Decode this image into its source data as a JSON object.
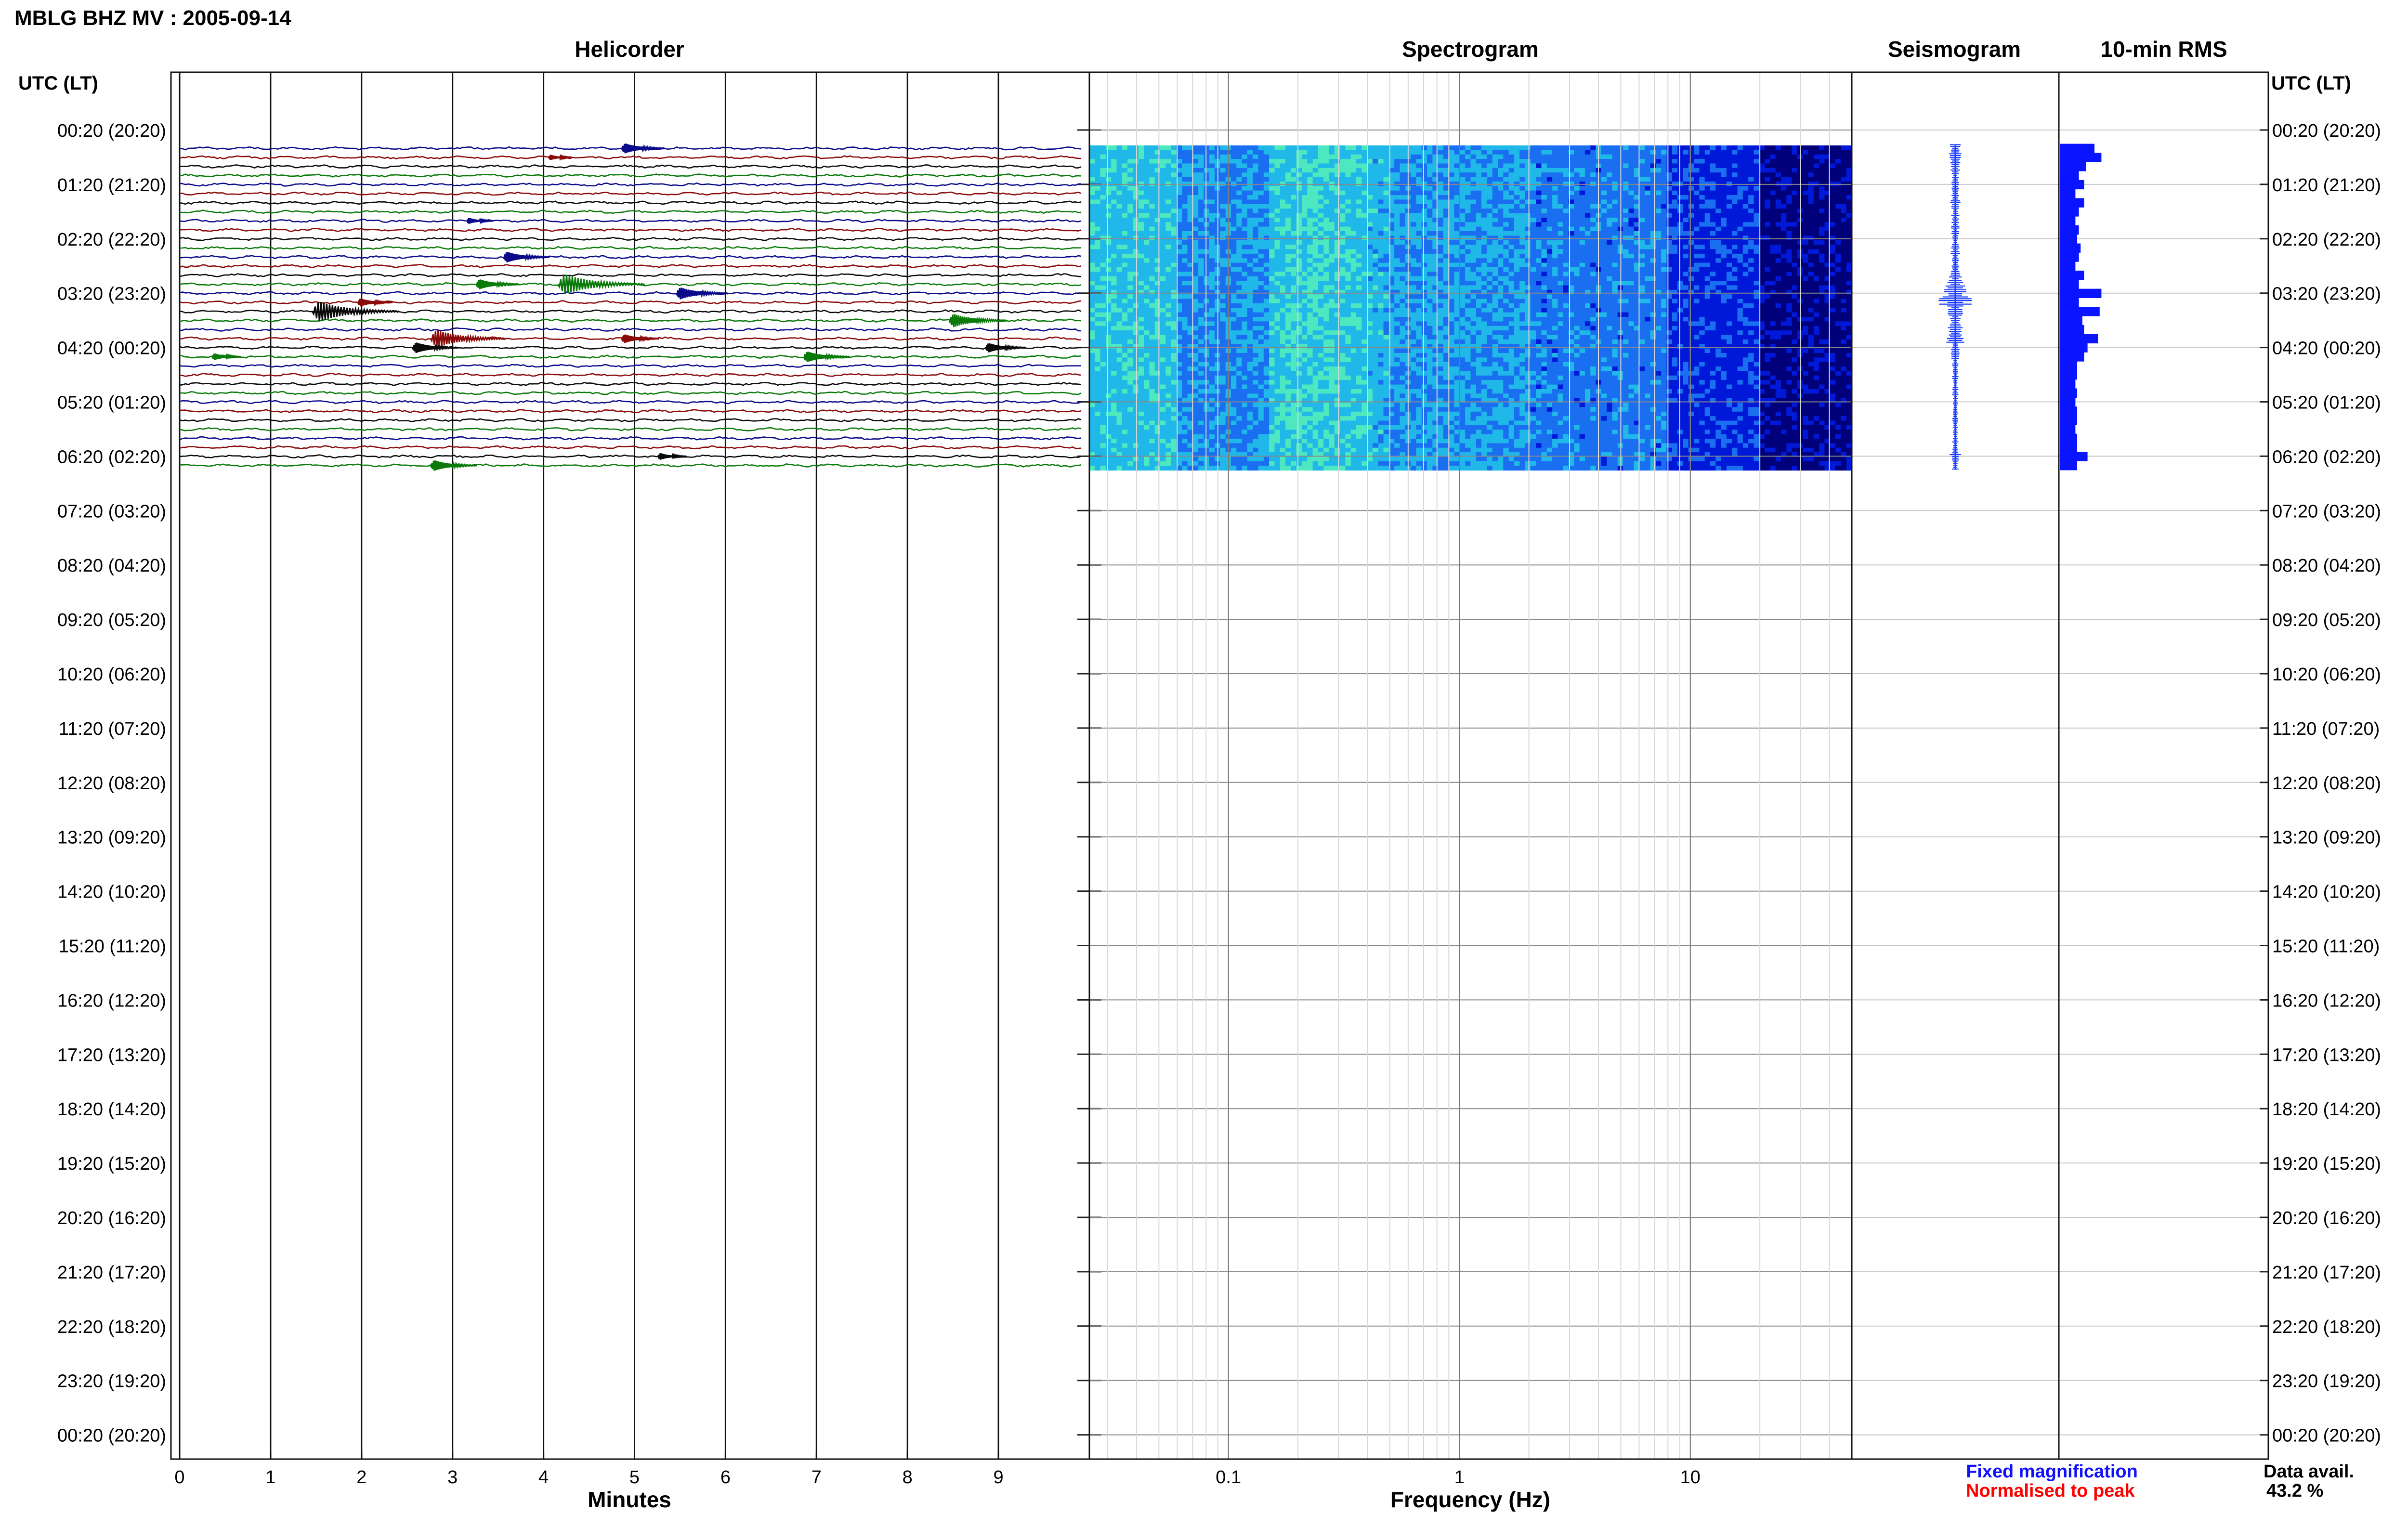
{
  "page_title": "MBLG BHZ MV : 2005-09-14",
  "chart_data": [
    {
      "type": "line",
      "title": "Helicorder",
      "xlabel": "Minutes",
      "xlim": [
        0,
        10
      ],
      "x_ticks": [
        "0",
        "1",
        "2",
        "3",
        "4",
        "5",
        "6",
        "7",
        "8",
        "9"
      ],
      "ylabel": "UTC (LT)",
      "row_colors": [
        "#0a0a8a",
        "#8a0a0a",
        "#0a0a0a",
        "#0a7a0a"
      ],
      "traces_recorded": 36,
      "events": [
        {
          "row": 0,
          "minute": 4.9,
          "size": 1.5
        },
        {
          "row": 1,
          "minute": 4.1,
          "size": 0.8
        },
        {
          "row": 8,
          "minute": 3.2,
          "size": 0.9
        },
        {
          "row": 12,
          "minute": 3.6,
          "size": 1.6
        },
        {
          "row": 15,
          "minute": 3.3,
          "size": 1.5
        },
        {
          "row": 15,
          "minute": 4.2,
          "size": 3.0
        },
        {
          "row": 16,
          "minute": 5.5,
          "size": 1.8
        },
        {
          "row": 17,
          "minute": 2.0,
          "size": 1.2
        },
        {
          "row": 18,
          "minute": 1.5,
          "size": 3.0
        },
        {
          "row": 19,
          "minute": 8.5,
          "size": 2.0
        },
        {
          "row": 21,
          "minute": 2.8,
          "size": 2.6
        },
        {
          "row": 21,
          "minute": 4.9,
          "size": 1.3
        },
        {
          "row": 22,
          "minute": 2.6,
          "size": 1.6
        },
        {
          "row": 22,
          "minute": 8.9,
          "size": 1.4
        },
        {
          "row": 23,
          "minute": 6.9,
          "size": 1.6
        },
        {
          "row": 23,
          "minute": 0.4,
          "size": 1.0
        },
        {
          "row": 34,
          "minute": 5.3,
          "size": 1.0
        },
        {
          "row": 35,
          "minute": 2.8,
          "size": 1.6
        }
      ]
    },
    {
      "type": "heatmap",
      "title": "Spectrogram",
      "xlabel": "Frequency (Hz)",
      "x_scale": "log",
      "xlim": [
        0.025,
        50
      ],
      "x_ticks": [
        "0.1",
        "1",
        "10"
      ],
      "colormap": [
        "#00007a",
        "#0018d8",
        "#1a6ff0",
        "#20b8e8",
        "#4ee8c0",
        "#b8f060"
      ],
      "note_rows": 36
    },
    {
      "type": "line",
      "title": "Seismogram",
      "legend": [
        {
          "label": "Fixed magnification",
          "color": "#1010ff"
        },
        {
          "label": "Normalised to peak",
          "color": "#ff0000"
        }
      ],
      "amplitude_by_row": [
        1.0,
        1.2,
        1.0,
        0.8,
        0.9,
        0.7,
        1.0,
        0.8,
        0.7,
        0.8,
        0.6,
        0.8,
        0.9,
        0.7,
        1.2,
        2.0,
        2.8,
        3.4,
        1.6,
        1.1,
        1.5,
        2.0,
        0.9,
        0.8,
        0.6,
        0.6,
        0.5,
        0.6,
        0.5,
        0.5,
        0.6,
        0.5,
        0.6,
        0.6,
        1.1,
        0.6
      ]
    },
    {
      "type": "bar",
      "title": "10-min RMS",
      "orientation": "horizontal",
      "values": [
        1.0,
        1.2,
        0.75,
        0.55,
        0.7,
        0.45,
        0.7,
        0.55,
        0.45,
        0.55,
        0.5,
        0.6,
        0.55,
        0.45,
        0.7,
        0.55,
        1.2,
        0.55,
        1.15,
        0.65,
        0.7,
        1.1,
        0.8,
        0.7,
        0.5,
        0.5,
        0.45,
        0.5,
        0.45,
        0.5,
        0.5,
        0.45,
        0.5,
        0.5,
        0.8,
        0.5
      ]
    }
  ],
  "time_labels": [
    "00:20 (20:20)",
    "01:20 (21:20)",
    "02:20 (22:20)",
    "03:20 (23:20)",
    "04:20 (00:20)",
    "05:20 (01:20)",
    "06:20 (02:20)",
    "07:20 (03:20)",
    "08:20 (04:20)",
    "09:20 (05:20)",
    "10:20 (06:20)",
    "11:20 (07:20)",
    "12:20 (08:20)",
    "13:20 (09:20)",
    "14:20 (10:20)",
    "15:20 (11:20)",
    "16:20 (12:20)",
    "17:20 (13:20)",
    "18:20 (14:20)",
    "19:20 (15:20)",
    "20:20 (16:20)",
    "21:20 (17:20)",
    "22:20 (18:20)",
    "23:20 (19:20)",
    "00:20 (20:20)"
  ],
  "axis_header_left": "UTC (LT)",
  "axis_header_right": "UTC (LT)",
  "data_avail": {
    "label": "Data avail.",
    "value": "43.2 %"
  },
  "colors": {
    "seismogram": "#1a3cff",
    "rms": "#0a14ff",
    "grid": "#c8c8c8"
  }
}
